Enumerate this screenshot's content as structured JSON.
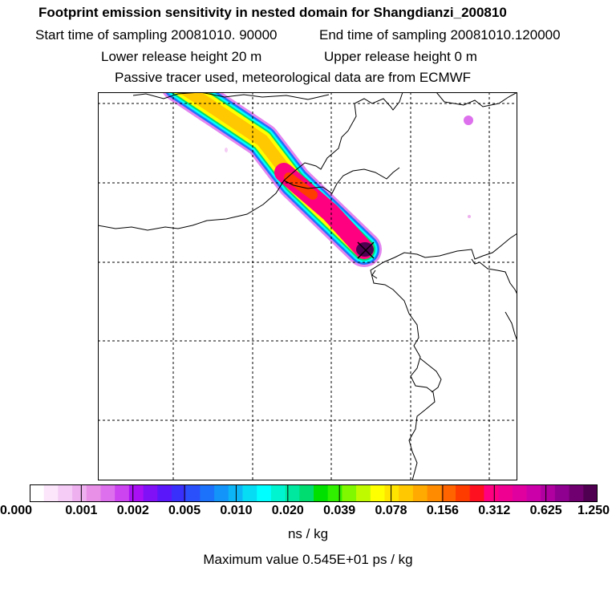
{
  "header": {
    "title": "Footprint emission sensitivity in nested domain for Shangdianzi_200810",
    "start_label": "Start time of sampling 20081010. 90000",
    "end_label": "End time of sampling 20081010.120000",
    "lower_label": "Lower release height   20 m",
    "upper_label": "Upper release height    0 m",
    "tracer_note": "Passive tracer used, meteorological data are from ECMWF"
  },
  "colorbar": {
    "colors": [
      "#ffffff",
      "#fbe6fb",
      "#f5ccf5",
      "#eeb0ee",
      "#e890e8",
      "#dd70ec",
      "#cc44f0",
      "#aa10f4",
      "#8010f6",
      "#5a18fa",
      "#3a30fc",
      "#2a50fc",
      "#1c72fa",
      "#1294f8",
      "#0cb6f6",
      "#06dcf4",
      "#00ffff",
      "#00f4d0",
      "#00e8a0",
      "#00dc70",
      "#00e000",
      "#30f000",
      "#80f800",
      "#c0fa00",
      "#ffff00",
      "#ffe400",
      "#ffc800",
      "#ffaa00",
      "#ff8c00",
      "#ff6400",
      "#ff3c00",
      "#ff1020",
      "#ff0080",
      "#f00090",
      "#e000a0",
      "#cc00a8",
      "#b000a0",
      "#900090",
      "#700070",
      "#500050"
    ],
    "tick_labels": [
      "0.000",
      "0.001",
      "0.002",
      "0.005",
      "0.010",
      "0.020",
      "0.039",
      "0.078",
      "0.156",
      "0.312",
      "0.625",
      "1.250"
    ],
    "unit": "ns / kg",
    "max_value_text": "Maximum value  0.545E+01 ps / kg"
  }
}
